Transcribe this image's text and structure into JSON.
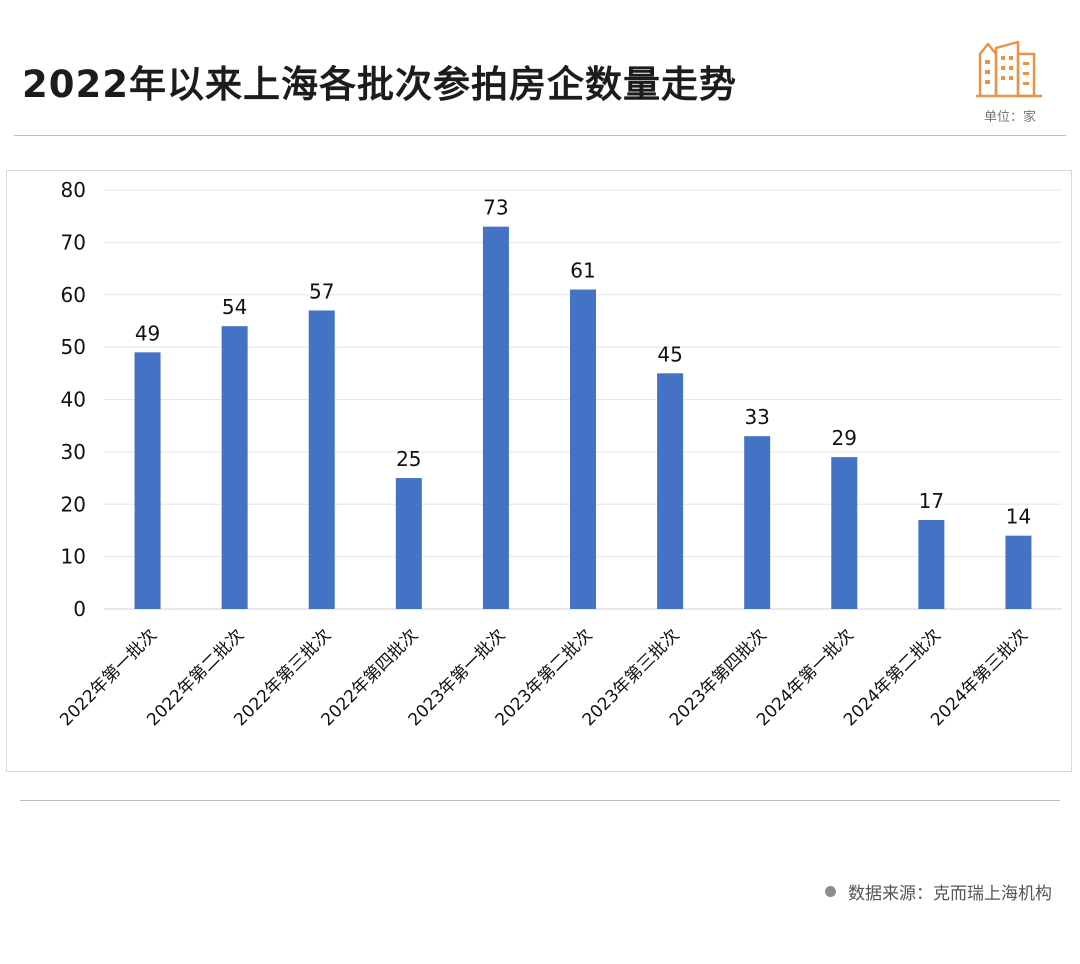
{
  "header": {
    "title": "2022年以来上海各批次参拍房企数量走势",
    "unit": "单位：家"
  },
  "footer": {
    "source": "数据来源：克而瑞上海机构"
  },
  "logo": {
    "icon": "city-buildings-icon",
    "color": "#e8924a"
  },
  "chart_data": {
    "type": "bar",
    "title": "2022年以来上海各批次参拍房企数量走势",
    "unit": "单位：家",
    "categories": [
      "2022年第一批次",
      "2022年第二批次",
      "2022年第三批次",
      "2022年第四批次",
      "2023年第一批次",
      "2023年第二批次",
      "2023年第三批次",
      "2023年第四批次",
      "2024年第一批次",
      "2024年第二批次",
      "2024年第三批次"
    ],
    "values": [
      49,
      54,
      57,
      25,
      73,
      61,
      45,
      33,
      29,
      17,
      14
    ],
    "ylim": [
      0,
      80
    ],
    "yticks": [
      0,
      10,
      20,
      30,
      40,
      50,
      60,
      70,
      80
    ],
    "grid": true,
    "bar_color": "#4472c4",
    "data_labels": true
  }
}
